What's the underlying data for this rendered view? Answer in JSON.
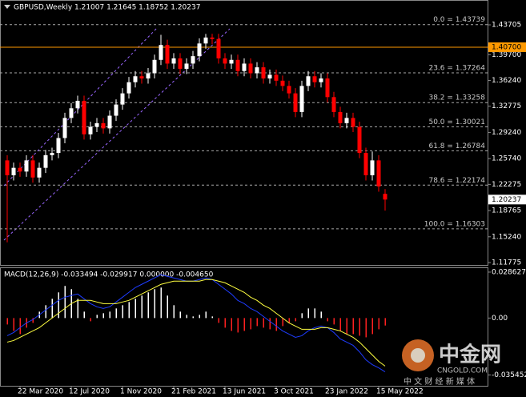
{
  "chart_data": [
    {
      "type": "candlestick",
      "title": "GBPUSD,Weekly  1.21007 1.21645 1.18752 1.20237",
      "categories": [
        null,
        null,
        "22 Mar 2020",
        null,
        null,
        null,
        null,
        null,
        null,
        null,
        "12 Jul 2020",
        null,
        null,
        null,
        null,
        null,
        null,
        null,
        "1 Nov 2020",
        null,
        null,
        null,
        null,
        null,
        null,
        null,
        "21 Feb 2021",
        null,
        null,
        null,
        null,
        null,
        null,
        null,
        "13 Jun 2021",
        null,
        null,
        null,
        null,
        null,
        null,
        null,
        "3 Oct 2021",
        null,
        null,
        null,
        null,
        null,
        null,
        null,
        "23 Jan 2022",
        null,
        null,
        null,
        null,
        null,
        null,
        null,
        "15 May 2022",
        null
      ],
      "open": [
        1.255,
        1.235,
        1.245,
        1.24,
        1.255,
        1.232,
        1.245,
        1.262,
        1.265,
        1.285,
        1.312,
        1.325,
        1.335,
        1.29,
        1.3,
        1.305,
        1.298,
        1.315,
        1.33,
        1.345,
        1.36,
        1.368,
        1.365,
        1.372,
        1.39,
        1.41,
        1.385,
        1.392,
        1.378,
        1.385,
        1.395,
        1.412,
        1.42,
        1.418,
        1.392,
        1.385,
        1.39,
        1.375,
        1.385,
        1.372,
        1.38,
        1.365,
        1.37,
        1.362,
        1.355,
        1.345,
        1.32,
        1.355,
        1.368,
        1.36,
        1.365,
        1.34,
        1.32,
        1.305,
        1.312,
        1.3,
        1.265,
        1.235,
        1.255,
        1.21007
      ],
      "high": [
        1.262,
        1.252,
        1.252,
        1.262,
        1.262,
        1.252,
        1.269,
        1.272,
        1.292,
        1.319,
        1.332,
        1.342,
        1.342,
        1.307,
        1.312,
        1.312,
        1.322,
        1.337,
        1.352,
        1.367,
        1.375,
        1.375,
        1.379,
        1.397,
        1.4237,
        1.417,
        1.399,
        1.399,
        1.392,
        1.402,
        1.419,
        1.4249,
        1.425,
        1.425,
        1.399,
        1.397,
        1.397,
        1.392,
        1.392,
        1.387,
        1.387,
        1.377,
        1.377,
        1.369,
        1.362,
        1.352,
        1.362,
        1.375,
        1.375,
        1.372,
        1.372,
        1.347,
        1.327,
        1.319,
        1.319,
        1.307,
        1.272,
        1.267,
        1.262,
        1.21645
      ],
      "low": [
        1.145,
        1.228,
        1.233,
        1.233,
        1.225,
        1.225,
        1.238,
        1.255,
        1.258,
        1.278,
        1.305,
        1.318,
        1.283,
        1.283,
        1.293,
        1.291,
        1.291,
        1.308,
        1.323,
        1.338,
        1.353,
        1.358,
        1.358,
        1.365,
        1.383,
        1.378,
        1.378,
        1.371,
        1.371,
        1.378,
        1.388,
        1.405,
        1.411,
        1.385,
        1.378,
        1.378,
        1.368,
        1.368,
        1.365,
        1.365,
        1.358,
        1.358,
        1.355,
        1.348,
        1.338,
        1.313,
        1.313,
        1.348,
        1.353,
        1.353,
        1.333,
        1.313,
        1.298,
        1.298,
        1.293,
        1.258,
        1.228,
        1.228,
        1.213,
        1.18752
      ],
      "close": [
        1.235,
        1.245,
        1.24,
        1.255,
        1.232,
        1.245,
        1.262,
        1.265,
        1.285,
        1.312,
        1.325,
        1.335,
        1.29,
        1.3,
        1.305,
        1.298,
        1.315,
        1.33,
        1.345,
        1.36,
        1.368,
        1.365,
        1.372,
        1.39,
        1.41,
        1.385,
        1.392,
        1.378,
        1.385,
        1.395,
        1.412,
        1.42,
        1.418,
        1.392,
        1.385,
        1.39,
        1.375,
        1.385,
        1.372,
        1.38,
        1.365,
        1.37,
        1.362,
        1.355,
        1.345,
        1.32,
        1.355,
        1.368,
        1.36,
        1.365,
        1.34,
        1.32,
        1.305,
        1.312,
        1.3,
        1.265,
        1.235,
        1.255,
        1.22,
        1.20237
      ],
      "up_color": "#ffffff",
      "down_color": "#ff0000",
      "ylim": [
        1.1135,
        1.4704
      ],
      "yticks": [
        1.43705,
        {
          "value": 1.397,
          "label": "1.39700"
        },
        {
          "value": 1.3624,
          "label": "1.36240"
        },
        1.32775,
        {
          "value": 1.2924,
          "label": "1.29240"
        },
        {
          "value": 1.2574,
          "label": "1.25740"
        },
        1.22275,
        1.18765,
        {
          "value": 1.1524,
          "label": "1.15240"
        },
        1.11775
      ],
      "fib_levels": [
        {
          "value": 1.43739,
          "label": "0.0 = 1.43739"
        },
        {
          "value": 1.37264,
          "label": "23.6 = 1.37264"
        },
        {
          "value": 1.33258,
          "label": "38.2 = 1.33258"
        },
        {
          "value": 1.30021,
          "label": "50.0 = 1.30021"
        },
        {
          "value": 1.26784,
          "label": "61.8 = 1.26784"
        },
        {
          "value": 1.22174,
          "label": "78.6 = 1.22174"
        },
        {
          "value": 1.16303,
          "label": "100.0 = 1.16303"
        }
      ],
      "marker_line": {
        "value": 1.407,
        "label": "1.40700",
        "color": "#ff9900"
      },
      "price_label": {
        "value": 1.20237,
        "label": "1.20237"
      }
    },
    {
      "type": "macd",
      "title": "MACD(12,26,9) -0.033494 -0.029917 0.000000 -0.004650",
      "histogram": [
        -0.004,
        -0.008,
        -0.01,
        -0.006,
        -0.003,
        0.004,
        0.008,
        0.012,
        0.016,
        0.02,
        0.018,
        0.012,
        0.004,
        -0.002,
        0.002,
        0.003,
        0.004,
        0.006,
        0.008,
        0.01,
        0.012,
        0.014,
        0.016,
        0.018,
        0.019,
        0.014,
        0.008,
        0.004,
        0.002,
        0.001,
        0.002,
        0.004,
        0.001,
        -0.003,
        -0.006,
        -0.008,
        -0.009,
        -0.008,
        -0.007,
        -0.005,
        -0.006,
        -0.007,
        -0.008,
        -0.005,
        -0.003,
        -0.002,
        0.003,
        0.006,
        0.006,
        0.004,
        -0.002,
        -0.004,
        -0.008,
        -0.01,
        -0.01,
        -0.011,
        -0.012,
        -0.01,
        -0.007,
        -0.00465
      ],
      "positive_color": "#ffffff",
      "negative_color": "#ff2020",
      "series": [
        {
          "color": "#1e3cff",
          "values": [
            -0.011,
            -0.009,
            -0.006,
            -0.003,
            -0.001,
            0.002,
            0.005,
            0.008,
            0.011,
            0.013,
            0.014,
            0.015,
            0.012,
            0.009,
            0.007,
            0.006,
            0.007,
            0.01,
            0.013,
            0.016,
            0.019,
            0.021,
            0.023,
            0.025,
            0.027,
            0.026,
            0.025,
            0.024,
            0.023,
            0.023,
            0.024,
            0.025,
            0.024,
            0.021,
            0.018,
            0.015,
            0.011,
            0.009,
            0.006,
            0.004,
            0.001,
            -0.002,
            -0.005,
            -0.008,
            -0.01,
            -0.012,
            -0.011,
            -0.008,
            -0.006,
            -0.005,
            -0.006,
            -0.009,
            -0.013,
            -0.015,
            -0.017,
            -0.021,
            -0.026,
            -0.029,
            -0.031,
            -0.033494
          ]
        },
        {
          "color": "#ffff40",
          "values": [
            -0.015,
            -0.014,
            -0.012,
            -0.01,
            -0.008,
            -0.006,
            -0.003,
            0,
            0.003,
            0.006,
            0.009,
            0.011,
            0.011,
            0.011,
            0.01,
            0.009,
            0.009,
            0.009,
            0.01,
            0.011,
            0.013,
            0.015,
            0.017,
            0.019,
            0.021,
            0.022,
            0.023,
            0.023,
            0.023,
            0.023,
            0.023,
            0.024,
            0.024,
            0.023,
            0.022,
            0.02,
            0.018,
            0.016,
            0.013,
            0.011,
            0.008,
            0.006,
            0.003,
            0,
            -0.003,
            -0.005,
            -0.007,
            -0.007,
            -0.007,
            -0.006,
            -0.006,
            -0.007,
            -0.008,
            -0.01,
            -0.012,
            -0.015,
            -0.019,
            -0.023,
            -0.027,
            -0.029917
          ]
        }
      ],
      "ylim": [
        -0.0427,
        0.0316
      ],
      "yticks": [
        0.028627,
        {
          "value": 0,
          "label": "0.00"
        },
        -0.035452
      ]
    }
  ],
  "watermark": {
    "brand": "中金网",
    "slogan": "中 文 财 经 新 媒 体",
    "site": "CNGOLD.COM"
  }
}
